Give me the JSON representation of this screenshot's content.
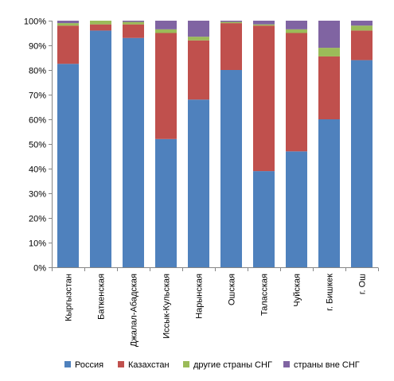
{
  "chart_data": {
    "type": "bar",
    "stacked": true,
    "percent_stacked": true,
    "categories": [
      "Кыргызстан",
      "Баткенская",
      "Джалал-Абадская",
      "Иссык-Кульская",
      "Нарынская",
      "Ошская",
      "Таласская",
      "Чуйская",
      "г. Бишкек",
      "г. Ош"
    ],
    "series": [
      {
        "name": "Россия",
        "color": "#4F81BD",
        "values": [
          82.5,
          96,
          93,
          52,
          68,
          80,
          39,
          47,
          60,
          84
        ]
      },
      {
        "name": "Казахстан",
        "color": "#C0504D",
        "values": [
          15.5,
          2.5,
          5.5,
          43,
          24,
          19,
          59,
          48,
          25.5,
          12
        ]
      },
      {
        "name": "другие страны СНГ",
        "color": "#9BBB59",
        "values": [
          1,
          1.5,
          1,
          1.5,
          1.5,
          0.5,
          0.5,
          1.5,
          3.5,
          2
        ]
      },
      {
        "name": "страны  вне СНГ",
        "color": "#8064A2",
        "values": [
          1,
          0,
          0.5,
          3.5,
          6.5,
          0.5,
          1.5,
          3.5,
          11,
          2
        ]
      }
    ],
    "y_ticks": [
      "0%",
      "10%",
      "20%",
      "30%",
      "40%",
      "50%",
      "60%",
      "70%",
      "80%",
      "90%",
      "100%"
    ],
    "ylim": [
      0,
      100
    ],
    "grid": false,
    "legend_position": "bottom"
  }
}
